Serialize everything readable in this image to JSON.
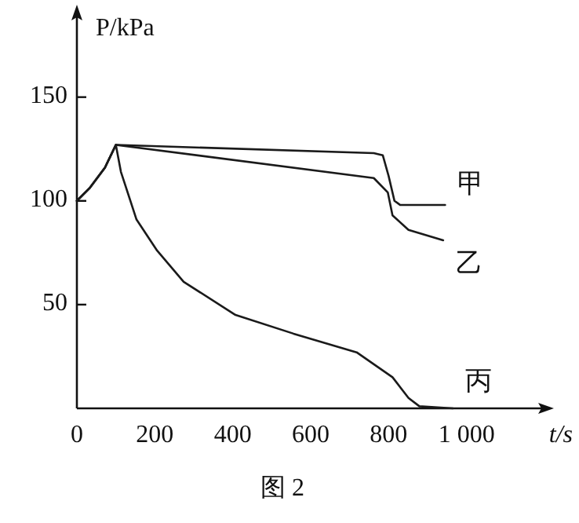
{
  "chart_data": {
    "type": "line",
    "xlabel": "t/s",
    "ylabel": "P/kPa",
    "annotations": [
      "图 2"
    ],
    "xlim": [
      0,
      1200
    ],
    "ylim": [
      0,
      190
    ],
    "xticks": [
      0,
      200,
      400,
      600,
      800,
      {
        "value": 1000,
        "label": "1 000"
      }
    ],
    "yticks": [
      50,
      100,
      150
    ],
    "series": [
      {
        "name": "甲",
        "color": "#1a1a1a",
        "x": [
          0,
          32,
          72,
          100,
          762,
          785,
          800,
          815,
          830,
          945
        ],
        "values": [
          100,
          106,
          116,
          127,
          123,
          122,
          112,
          100,
          98,
          98
        ]
      },
      {
        "name": "乙",
        "color": "#1a1a1a",
        "x": [
          0,
          32,
          72,
          100,
          762,
          798,
          810,
          851,
          940
        ],
        "values": [
          100,
          106,
          116,
          127,
          111,
          104,
          93,
          86,
          81
        ]
      },
      {
        "name": "丙",
        "color": "#1a1a1a",
        "x": [
          0,
          32,
          72,
          100,
          113,
          153,
          206,
          274,
          407,
          556,
          718,
          810,
          851,
          879,
          965
        ],
        "values": [
          100,
          106,
          116,
          127,
          114,
          91,
          76,
          61,
          45,
          36,
          27,
          15,
          5,
          1,
          0
        ]
      }
    ],
    "legend": false,
    "grid": false,
    "marker": "none",
    "line_style": "solid"
  }
}
